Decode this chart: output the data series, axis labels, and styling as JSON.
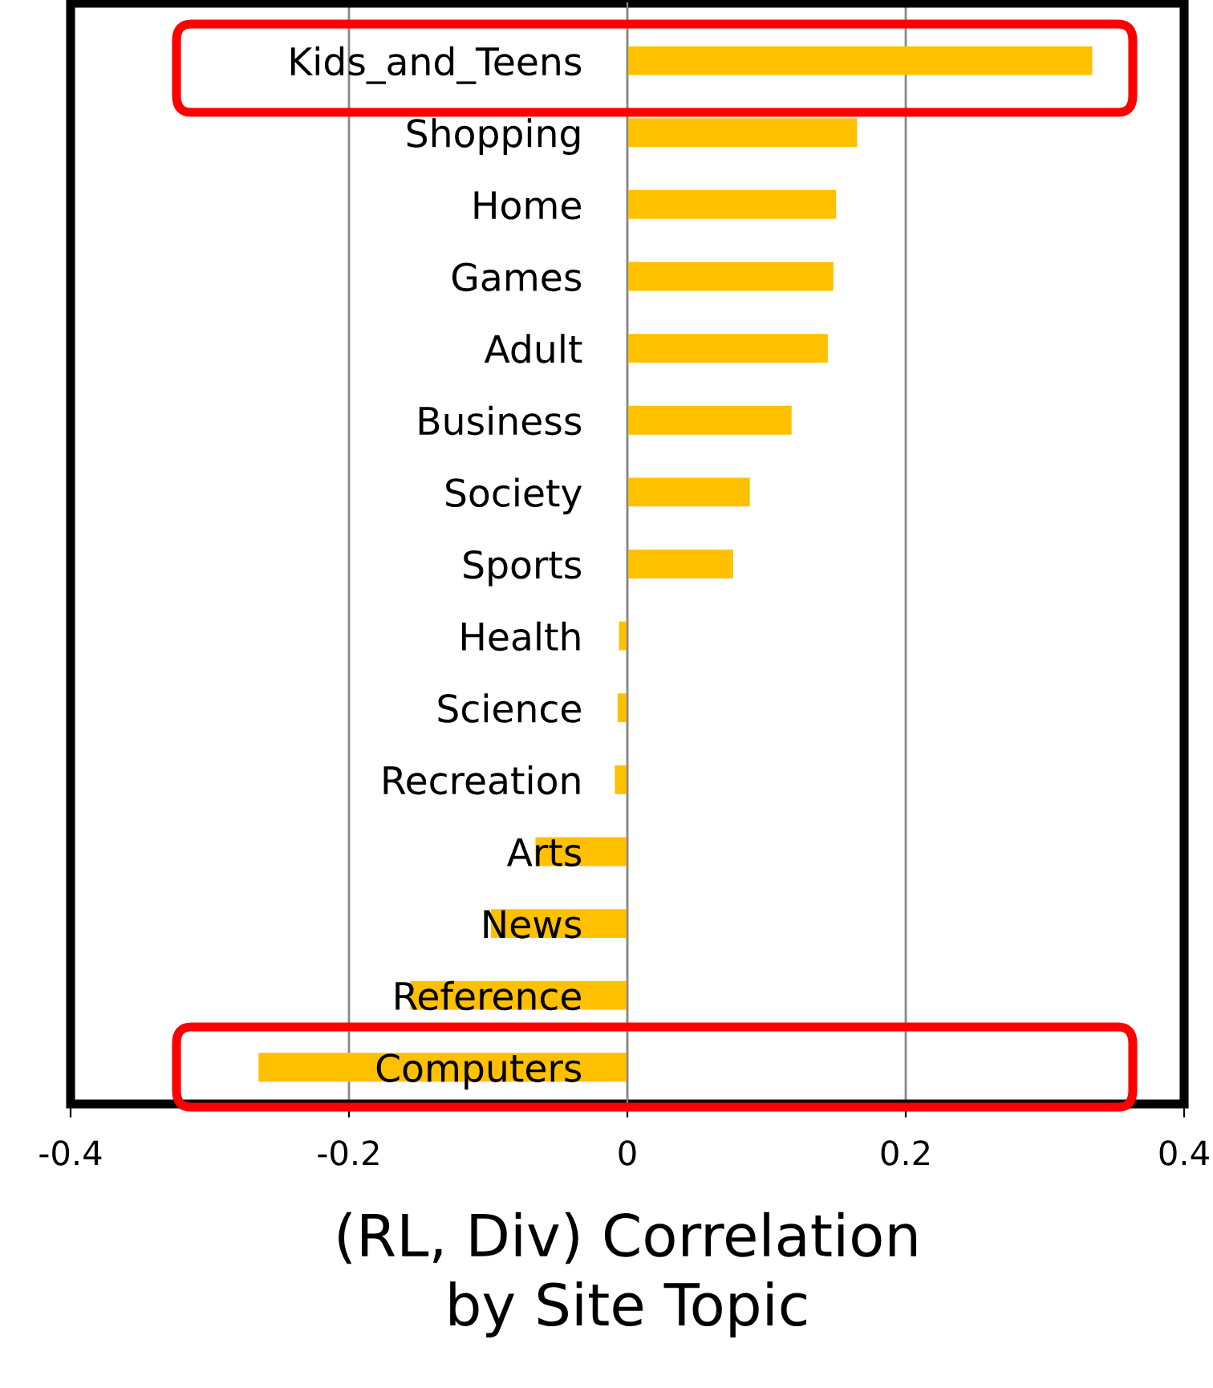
{
  "chart_data": {
    "type": "bar",
    "orientation": "horizontal",
    "xlabel": "(RL, Div) Correlation\nby Site Topic",
    "categories": [
      "Kids_and_Teens",
      "Shopping",
      "Home",
      "Games",
      "Adult",
      "Business",
      "Society",
      "Sports",
      "Health",
      "Science",
      "Recreation",
      "Arts",
      "News",
      "Reference",
      "Computers"
    ],
    "values": [
      0.334,
      0.165,
      0.15,
      0.148,
      0.144,
      0.118,
      0.088,
      0.076,
      -0.006,
      -0.007,
      -0.009,
      -0.066,
      -0.098,
      -0.156,
      -0.265
    ],
    "color": "#ffc000",
    "xlim": [
      -0.4,
      0.4
    ],
    "xticks": [
      -0.4,
      -0.2,
      0,
      0.2,
      0.4
    ],
    "grid": "x"
  }
}
